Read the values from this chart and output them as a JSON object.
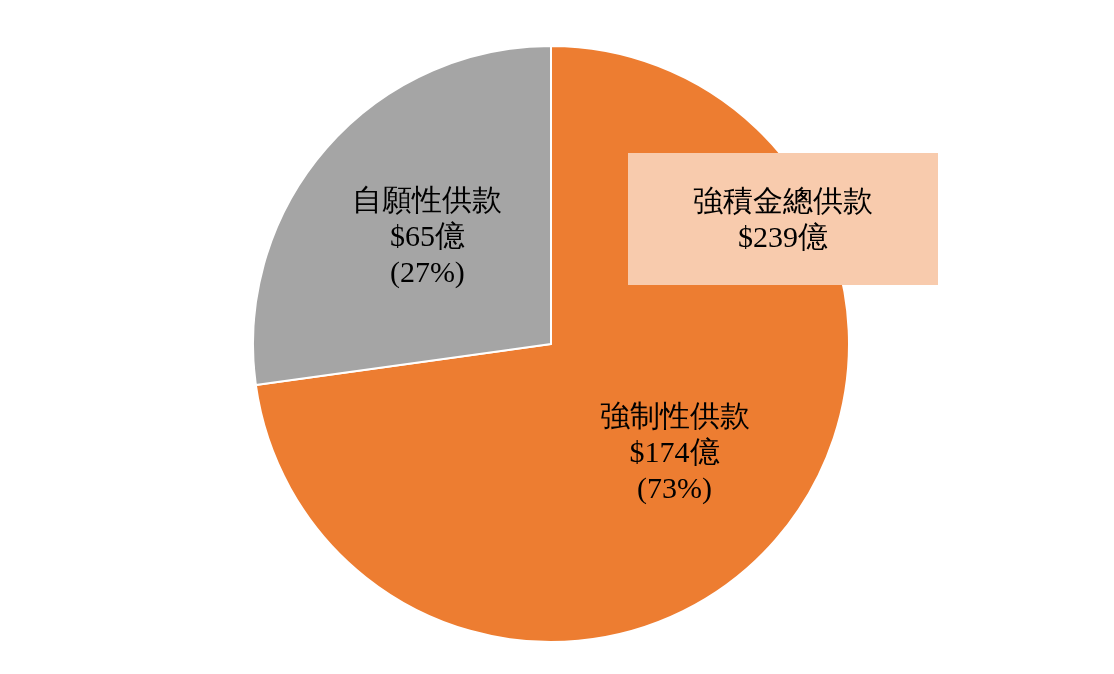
{
  "chart_data": {
    "type": "pie",
    "categories": [
      "強制性供款",
      "自願性供款"
    ],
    "values": [
      174,
      65
    ],
    "value_labels": [
      "$174億\n(73%)",
      "$65億\n(27%)"
    ],
    "colors": [
      "#ed7d31",
      "#a5a5a5"
    ],
    "annotations": [
      "強積金總供款\n$239億"
    ]
  }
}
